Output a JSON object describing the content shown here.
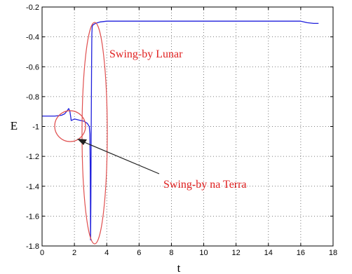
{
  "chart_data": {
    "type": "line",
    "title": "",
    "xlabel": "t",
    "ylabel": "E",
    "xlim": [
      0,
      18
    ],
    "ylim": [
      -1.8,
      -0.2
    ],
    "xticks": [
      0,
      2,
      4,
      6,
      8,
      10,
      12,
      14,
      16,
      18
    ],
    "yticks": [
      -0.2,
      -0.4,
      -0.6,
      -0.8,
      -1,
      -1.2,
      -1.4,
      -1.6,
      -1.8
    ],
    "grid": true,
    "series": [
      {
        "color": "#1f1fdc",
        "x": [
          0,
          0.4,
          0.8,
          1.2,
          1.4,
          1.55,
          1.65,
          1.72,
          1.78,
          1.8,
          1.9,
          2.0,
          2.2,
          2.4,
          2.6,
          2.8,
          2.92,
          2.96,
          2.98,
          3.0,
          3.02,
          3.04,
          3.06,
          3.08,
          3.1,
          3.15,
          3.3,
          3.6,
          4.0,
          5,
          8,
          12,
          15,
          16,
          16.4,
          16.8,
          17.1
        ],
        "y": [
          -0.93,
          -0.93,
          -0.93,
          -0.925,
          -0.915,
          -0.895,
          -0.88,
          -0.9,
          -0.94,
          -0.96,
          -0.955,
          -0.95,
          -0.955,
          -0.96,
          -0.965,
          -0.98,
          -1.0,
          -1.05,
          -1.3,
          -1.76,
          -1.5,
          -1.0,
          -0.6,
          -0.38,
          -0.33,
          -0.32,
          -0.31,
          -0.3,
          -0.295,
          -0.295,
          -0.295,
          -0.295,
          -0.295,
          -0.295,
          -0.305,
          -0.31,
          -0.31
        ]
      }
    ],
    "annotations": [
      {
        "text": "Swing-by Lunar",
        "color": "#e02020"
      },
      {
        "text": "Swing-by na Terra",
        "color": "#e02020"
      }
    ]
  }
}
